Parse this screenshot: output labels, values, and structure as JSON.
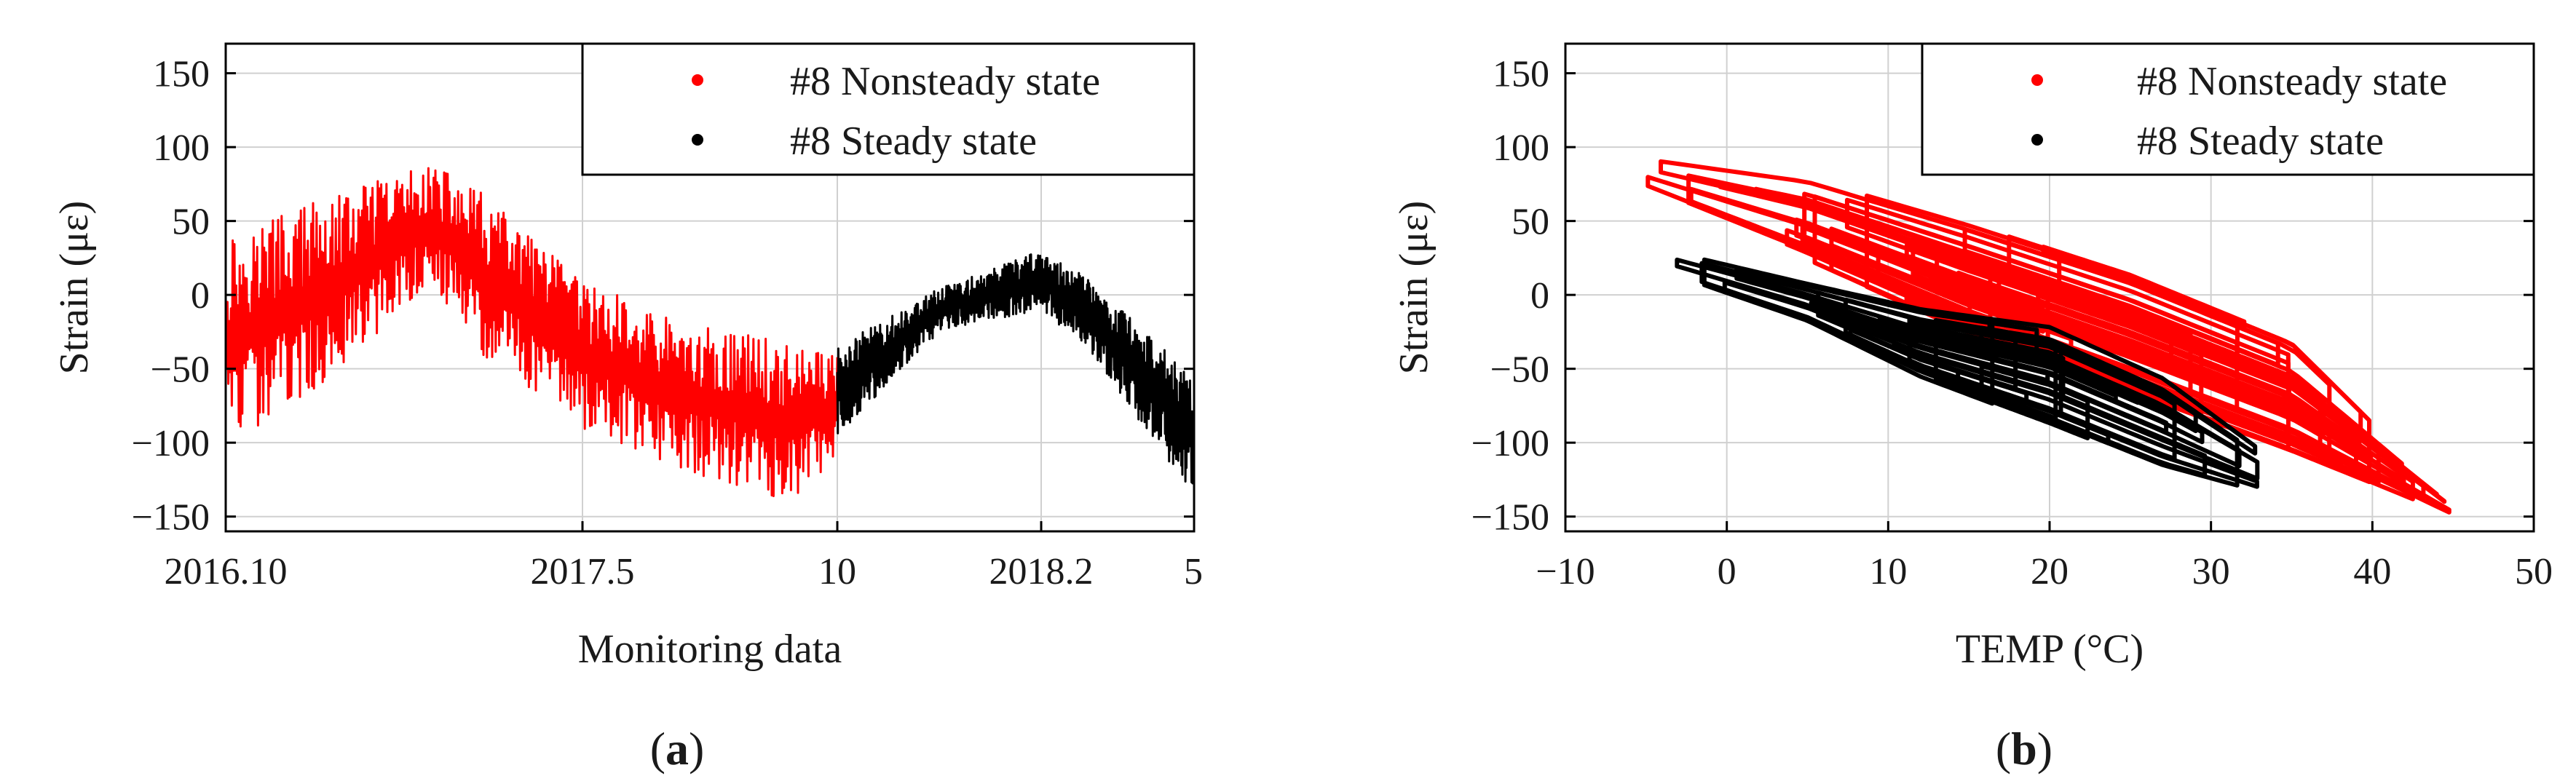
{
  "chart_data": [
    {
      "type": "line",
      "panel": "(a)",
      "panel_letter": "a",
      "xlabel": "Monitoring data",
      "ylabel": "Strain (με)",
      "x_ticks": [
        "2016.10",
        "2017.5",
        "10",
        "2018.2",
        "5"
      ],
      "x_tick_dates": [
        "2016-10",
        "2017-05",
        "2017-10",
        "2018-02",
        "2018-05"
      ],
      "xlim": [
        "2016-10",
        "2018-05"
      ],
      "ylim": [
        -160,
        170
      ],
      "yticks": [
        -150,
        -100,
        -50,
        0,
        50,
        100,
        150
      ],
      "grid": true,
      "legend_position": "top-right",
      "series": [
        {
          "name": "#8 Nonsteady state",
          "color": "#ff0000",
          "envelope": {
            "x": [
              "2016-10",
              "2016-12",
              "2017-02",
              "2017-03",
              "2017-05",
              "2017-07",
              "2017-09",
              "2017-10"
            ],
            "upper": [
              45,
              65,
              90,
              70,
              10,
              -20,
              -30,
              -40
            ],
            "lower": [
              -110,
              -60,
              10,
              -40,
              -90,
              -120,
              -140,
              -115
            ]
          }
        },
        {
          "name": "#8 Steady state",
          "color": "#000000",
          "envelope": {
            "x": [
              "2017-10",
              "2017-12",
              "2018-02",
              "2018-03",
              "2018-04",
              "2018-05"
            ],
            "upper": [
              -35,
              5,
              30,
              10,
              -20,
              -60
            ],
            "lower": [
              -95,
              -25,
              -10,
              -40,
              -90,
              -135
            ]
          }
        }
      ]
    },
    {
      "type": "scatter",
      "panel": "(b)",
      "panel_letter": "b",
      "xlabel": "TEMP (°C)",
      "ylabel": "Strain (με)",
      "xlim": [
        -10,
        50
      ],
      "ylim": [
        -160,
        170
      ],
      "xticks": [
        -10,
        0,
        10,
        20,
        30,
        40,
        50
      ],
      "yticks": [
        -150,
        -100,
        -50,
        0,
        50,
        100,
        150
      ],
      "grid": true,
      "legend_position": "top-right",
      "series": [
        {
          "name": "#8 Nonsteady state",
          "color": "#ff0000",
          "band": {
            "x": [
              -5,
              5,
              15,
              25,
              35,
              45
            ],
            "upper": [
              95,
              85,
              55,
              20,
              -25,
              -140
            ],
            "lower": [
              70,
              20,
              -30,
              -70,
              -110,
              -150
            ]
          }
        },
        {
          "name": "#8 Steady state",
          "color": "#000000",
          "band": {
            "x": [
              -4,
              5,
              12,
              20,
              27,
              34
            ],
            "upper": [
              32,
              10,
              -5,
              -15,
              -50,
              -110
            ],
            "lower": [
              15,
              -20,
              -60,
              -95,
              -125,
              -140
            ]
          }
        }
      ]
    }
  ]
}
